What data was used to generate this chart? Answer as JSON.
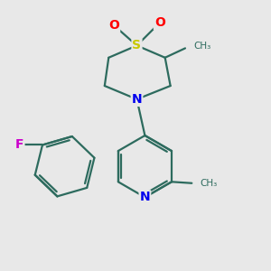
{
  "background_color": "#e8e8e8",
  "bond_color": "#2d6b5e",
  "bond_width": 1.6,
  "atom_colors": {
    "S": "#c8c800",
    "O": "#ff0000",
    "N": "#0000ee",
    "F": "#cc00cc",
    "C": "#2d6b5e"
  },
  "figsize": [
    3.0,
    3.0
  ],
  "dpi": 100
}
